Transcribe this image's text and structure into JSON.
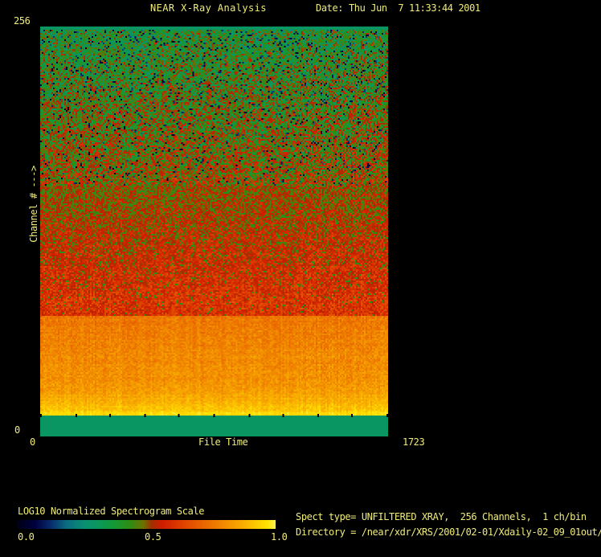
{
  "window": {
    "bg": "#000000",
    "text_color": "#f0ec7a",
    "title": "NEAR X-Ray Analysis"
  },
  "header": {
    "title": "NEAR X-Ray Analysis",
    "date": "Date: Thu Jun  7 11:33:44 2001"
  },
  "plot": {
    "y_max": "256",
    "y_min": "0",
    "y_label": "Channel # --->",
    "x_min": "0",
    "x_label": "File Time",
    "x_max": "1723"
  },
  "colorbar": {
    "label": "LOG10 Normalized Spectrogram Scale",
    "ticks": [
      "0.0",
      "0.5",
      "1.0"
    ]
  },
  "info": {
    "spect_type": "Spect type= UNFILTERED XRAY,  256 Channels,  1 ch/bin",
    "directory": "Directory = /near/xdr/XRS/2001/02-01/Xdaily-02_09_01out/"
  },
  "chart_data": {
    "type": "heatmap",
    "title": "NEAR X-Ray Analysis",
    "xlabel": "File Time",
    "ylabel": "Channel # --->",
    "xlim": [
      0,
      1723
    ],
    "ylim": [
      0,
      256
    ],
    "legend_position": "colorbar-bottom-left",
    "grid": false,
    "colorbar": {
      "label": "LOG10 Normalized Spectrogram Scale",
      "range": [
        0.0,
        1.0
      ],
      "ticks": [
        0.0,
        0.5,
        1.0
      ]
    },
    "colormap_stops": [
      [
        0.0,
        "#000014"
      ],
      [
        0.07,
        "#00003e"
      ],
      [
        0.13,
        "#072a6a"
      ],
      [
        0.19,
        "#0a6a80"
      ],
      [
        0.26,
        "#0a8f72"
      ],
      [
        0.3,
        "#0a9663"
      ],
      [
        0.37,
        "#129a38"
      ],
      [
        0.44,
        "#2f8c12"
      ],
      [
        0.49,
        "#6f7000"
      ],
      [
        0.52,
        "#a03000"
      ],
      [
        0.56,
        "#cf1c00"
      ],
      [
        0.66,
        "#e24a00"
      ],
      [
        0.78,
        "#ef8000"
      ],
      [
        0.88,
        "#f9b000"
      ],
      [
        0.97,
        "#ffe400"
      ],
      [
        1.0,
        "#fff060"
      ]
    ],
    "bands": [
      {
        "name": "top-border-strip",
        "channels": [
          254,
          256
        ],
        "values": [
          0.3,
          0.3
        ],
        "noise": 0
      },
      {
        "name": "green-noise-region",
        "channels": [
          157,
          254
        ],
        "values": [
          0.385,
          0.505
        ],
        "noise": 0.27,
        "speck_low": {
          "prob_top": 0.09,
          "prob_bottom": 0.05,
          "value": 0.02,
          "spread": 0.16
        },
        "speck_high": {
          "prob_top": 0.015,
          "prob_bottom": 0.05,
          "value": 0.54,
          "spread": 0.06
        }
      },
      {
        "name": "red-noise-region",
        "channels": [
          75,
          157
        ],
        "values": [
          0.52,
          0.62
        ],
        "noise": 0.15,
        "speck_low": {
          "prob_top": 0.22,
          "prob_bottom": 0.03,
          "value": 0.4,
          "spread": 0.07
        }
      },
      {
        "name": "orange-band",
        "channels": [
          28,
          75
        ],
        "values": [
          0.76,
          0.83
        ],
        "noise": 0.09
      },
      {
        "name": "yellow-band",
        "channels": [
          15,
          28
        ],
        "values": [
          0.84,
          0.93
        ],
        "noise": 0.07
      },
      {
        "name": "bright-yellow-edge",
        "channels": [
          13,
          15
        ],
        "values": [
          0.96,
          0.96
        ],
        "noise": 0.04
      },
      {
        "name": "bottom-border-strip",
        "channels": [
          0,
          13
        ],
        "values": [
          0.3,
          0.3
        ],
        "noise": 0
      }
    ],
    "x_minor_ticks": 10,
    "tick_row_channel": 13
  }
}
